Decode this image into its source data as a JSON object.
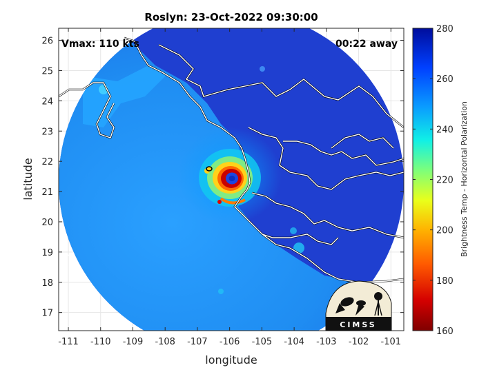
{
  "title": "Roslyn: 23-Oct-2022 09:30:00",
  "vmax_label": "Vmax: 110 kts",
  "time_label": "00:22 away",
  "xlabel": "longitude",
  "ylabel": "latitude",
  "colorbar": {
    "label": "Brightness Temp - Horizontal Polarization",
    "ticks": [
      "280",
      "260",
      "240",
      "220",
      "200",
      "180",
      "160"
    ],
    "range": [
      160,
      280
    ],
    "colors": [
      "#7f0000",
      "#d40000",
      "#ff5a00",
      "#ffb000",
      "#eaff1a",
      "#7dff7a",
      "#10f0e6",
      "#0a9cff",
      "#0040ff",
      "#000d9c"
    ]
  },
  "axes": {
    "x_ticks": [
      "-111",
      "-110",
      "-109",
      "-108",
      "-107",
      "-106",
      "-105",
      "-104",
      "-103",
      "-102",
      "-101"
    ],
    "y_ticks": [
      "26",
      "25",
      "24",
      "23",
      "22",
      "21",
      "20",
      "19",
      "18",
      "17"
    ],
    "xlim": [
      -111.3,
      -100.6
    ],
    "ylim": [
      16.4,
      26.4
    ],
    "grid": true
  },
  "storm": {
    "name": "Roslyn",
    "center_lon": -105.9,
    "center_lat": 21.4
  },
  "logo": {
    "text": "CIMSS"
  },
  "colors": {
    "scan_dark": "#1f35c8",
    "scan_mid": "#1860ee",
    "ocean": "#1d8ff0"
  }
}
